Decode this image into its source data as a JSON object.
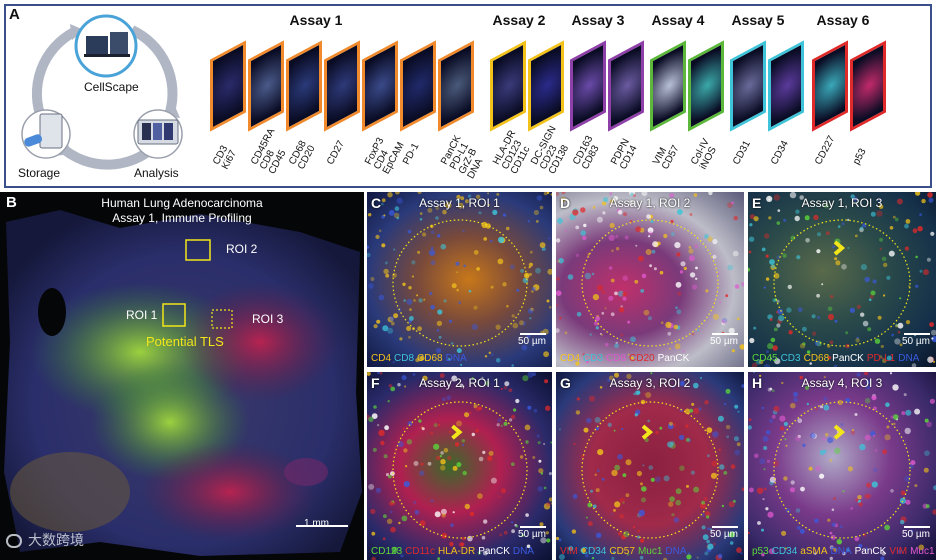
{
  "panel_a": {
    "letter": "A",
    "cycle": {
      "top_label": "CellScape",
      "left_label": "Storage",
      "right_label": "Analysis"
    },
    "assays": [
      {
        "title": "Assay 1",
        "color": "#f08a2c",
        "slides": [
          [
            "CD3",
            "Ki67"
          ],
          [
            "CD45RA",
            "CD8",
            "CD45"
          ],
          [
            "CD68",
            "CD20"
          ],
          [
            "CD27"
          ],
          [
            "FoxP3",
            "CD4",
            "EpCAM"
          ],
          [
            "PD-1"
          ],
          [
            "PanCK",
            "PD-L1",
            "GrZ-B",
            "DNA"
          ]
        ]
      },
      {
        "title": "Assay 2",
        "color": "#f2c21a",
        "slides": [
          [
            "HLA-DR",
            "CD123",
            "CD11c"
          ],
          [
            "DC-SIGN",
            "CD23",
            "CD138"
          ]
        ]
      },
      {
        "title": "Assay 3",
        "color": "#8e3fa8",
        "slides": [
          [
            "CD163",
            "CD83"
          ],
          [
            "PDPN",
            "CD14"
          ]
        ]
      },
      {
        "title": "Assay 4",
        "color": "#5cb83a",
        "slides": [
          [
            "VIM",
            "CD57"
          ],
          [
            "Col-IV",
            "iNOS"
          ]
        ]
      },
      {
        "title": "Assay 5",
        "color": "#3ec3d8",
        "slides": [
          [
            "CD31"
          ],
          [
            "CD34"
          ]
        ]
      },
      {
        "title": "Assay 6",
        "color": "#e02a2a",
        "slides": [
          [
            "CD227"
          ],
          [
            "p53"
          ]
        ]
      }
    ]
  },
  "panel_b": {
    "letter": "B",
    "title_line1": "Human Lung Adenocarcinoma",
    "title_line2": "Assay 1, Immune Profiling",
    "roi1": "ROI 1",
    "roi2": "ROI 2",
    "roi3": "ROI 3",
    "tls_label": "Potential TLS",
    "scale_label": "1 mm",
    "watermark": "大数跨境"
  },
  "tiles": [
    {
      "letter": "C",
      "title": "Assay 1, ROI 1",
      "scale": "50 µm",
      "legend": [
        {
          "t": "CD4",
          "c": "#f2c21a"
        },
        {
          "t": "CD8",
          "c": "#3ec3d8"
        },
        {
          "t": "CD68",
          "c": "#f2c21a"
        },
        {
          "t": "DNA",
          "c": "#3a5adf"
        }
      ]
    },
    {
      "letter": "D",
      "title": "Assay 1, ROI 2",
      "scale": "50 µm",
      "legend": [
        {
          "t": "CD4",
          "c": "#f2c21a"
        },
        {
          "t": "CD3",
          "c": "#3ec3d8"
        },
        {
          "t": "CD8",
          "c": "#e05ad0"
        },
        {
          "t": "CD20",
          "c": "#e02a2a"
        },
        {
          "t": "PanCK",
          "c": "#ffffff"
        }
      ]
    },
    {
      "letter": "E",
      "title": "Assay 1, ROI 3",
      "scale": "50 µm",
      "legend": [
        {
          "t": "CD45",
          "c": "#5cd83a"
        },
        {
          "t": "CD3",
          "c": "#3ec3d8"
        },
        {
          "t": "CD68",
          "c": "#f2c21a"
        },
        {
          "t": "PanCK",
          "c": "#ffffff"
        },
        {
          "t": "PD-L1",
          "c": "#e02a2a"
        },
        {
          "t": "DNA",
          "c": "#3a5adf"
        }
      ]
    },
    {
      "letter": "F",
      "title": "Assay 2, ROI 1",
      "scale": "50 µm",
      "legend": [
        {
          "t": "CD123",
          "c": "#5cd83a"
        },
        {
          "t": "CD11c",
          "c": "#e02a2a"
        },
        {
          "t": "HLA-DR",
          "c": "#f2c21a"
        },
        {
          "t": "PanCK",
          "c": "#ffffff"
        },
        {
          "t": "DNA",
          "c": "#3a5adf"
        }
      ]
    },
    {
      "letter": "G",
      "title": "Assay 3, ROI 2",
      "scale": "50 µm",
      "legend": [
        {
          "t": "VIM",
          "c": "#e02a2a"
        },
        {
          "t": "CD34",
          "c": "#3ec3d8"
        },
        {
          "t": "CD57",
          "c": "#f2c21a"
        },
        {
          "t": "Muc1",
          "c": "#5cd83a"
        },
        {
          "t": "DNA",
          "c": "#3a5adf"
        }
      ]
    },
    {
      "letter": "H",
      "title": "Assay 4, ROI 3",
      "scale": "50 µm",
      "legend": [
        {
          "t": "p53",
          "c": "#5cd83a"
        },
        {
          "t": "CD34",
          "c": "#3ec3d8"
        },
        {
          "t": "aSMA",
          "c": "#f2c21a"
        },
        {
          "t": "DNA",
          "c": "#3a5adf"
        },
        {
          "t": "PanCK",
          "c": "#ffffff"
        },
        {
          "t": "VIM",
          "c": "#e02a2a"
        },
        {
          "t": "Muc1",
          "c": "#e05ad0"
        }
      ]
    }
  ]
}
